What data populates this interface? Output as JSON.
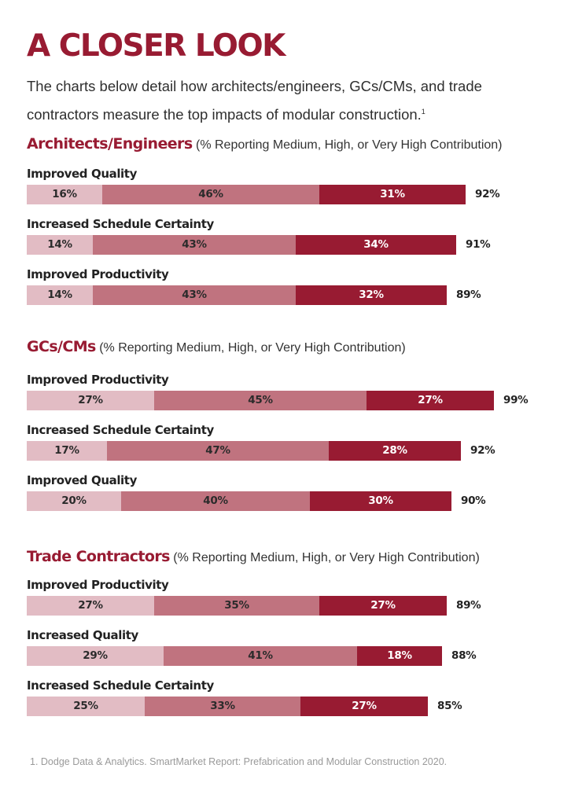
{
  "title": "A CLOSER LOOK",
  "intro": {
    "text": "The charts below detail how architects/engineers, GCs/CMs, and trade contractors measure the top impacts of modular construction.",
    "footnote_ref": "1"
  },
  "colors": {
    "brand": "#981b32",
    "medium": "#e2bcc4",
    "high": "#c0737f",
    "very_high": "#981b32"
  },
  "chart_data": [
    {
      "type": "bar",
      "orientation": "horizontal",
      "stacked": true,
      "title": "Architects/Engineers",
      "subtitle": "(% Reporting Medium, High, or Very High Contribution)",
      "categories": [
        "Improved Quality",
        "Increased Schedule Certainty",
        "Improved Productivity"
      ],
      "series": [
        {
          "values": [
            16,
            14,
            14
          ]
        },
        {
          "values": [
            46,
            43,
            43
          ]
        },
        {
          "values": [
            31,
            34,
            32
          ]
        }
      ],
      "totals": [
        92,
        91,
        89
      ]
    },
    {
      "type": "bar",
      "orientation": "horizontal",
      "stacked": true,
      "title": "GCs/CMs",
      "subtitle": "(% Reporting Medium, High, or Very High Contribution)",
      "categories": [
        "Improved Productivity",
        "Increased Schedule Certainty",
        "Improved Quality"
      ],
      "series": [
        {
          "values": [
            27,
            17,
            20
          ]
        },
        {
          "values": [
            45,
            47,
            40
          ]
        },
        {
          "values": [
            27,
            28,
            30
          ]
        }
      ],
      "totals": [
        99,
        92,
        90
      ]
    },
    {
      "type": "bar",
      "orientation": "horizontal",
      "stacked": true,
      "title": "Trade Contractors",
      "subtitle": "(% Reporting Medium, High, or Very High Contribution)",
      "categories": [
        "Improved Productivity",
        "Increased Quality",
        "Increased Schedule Certainty"
      ],
      "series": [
        {
          "values": [
            27,
            29,
            25
          ]
        },
        {
          "values": [
            35,
            41,
            33
          ]
        },
        {
          "values": [
            27,
            18,
            27
          ]
        }
      ],
      "totals": [
        89,
        88,
        85
      ]
    }
  ],
  "footnote": "1. Dodge Data & Analytics. SmartMarket Report: Prefabrication and Modular Construction 2020."
}
